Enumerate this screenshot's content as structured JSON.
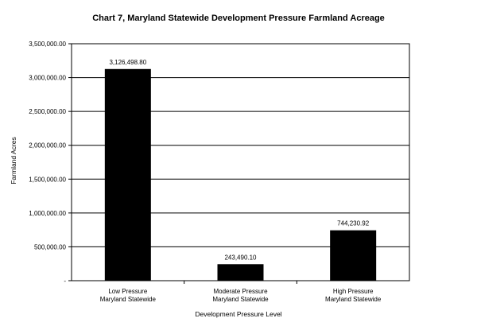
{
  "chart_data": {
    "type": "bar",
    "title": "Chart 7, Maryland Statewide Development Pressure Farmland Acreage",
    "xlabel": "Development Pressure Level",
    "ylabel": "Farmland Acres",
    "categories": [
      [
        "Low Pressure",
        "Maryland Statewide"
      ],
      [
        "Moderate Pressure",
        "Maryland Statewide"
      ],
      [
        "High Pressure",
        "Maryland Statewide"
      ]
    ],
    "values": [
      3126498.8,
      243490.1,
      744230.92
    ],
    "value_labels": [
      "3,126,498.80",
      "243,490.10",
      "744,230.92"
    ],
    "ylim": [
      0,
      3500000
    ],
    "yticks": [
      0,
      500000,
      1000000,
      1500000,
      2000000,
      2500000,
      3000000,
      3500000
    ],
    "ytick_labels": [
      "-",
      "500,000.00",
      "1,000,000.00",
      "1,500,000.00",
      "2,000,000.00",
      "2,500,000.00",
      "3,000,000.00",
      "3,500,000.00"
    ],
    "grid": true,
    "bar_color": "#000000"
  }
}
